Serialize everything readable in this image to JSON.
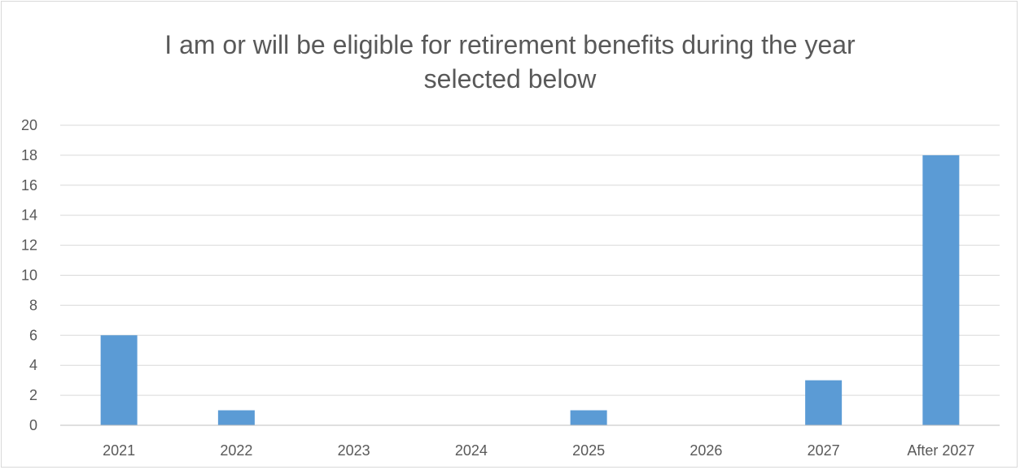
{
  "chart_data": {
    "type": "bar",
    "title_lines": [
      "I am or will be eligible for retirement benefits during the year",
      "selected below"
    ],
    "categories": [
      "2021",
      "2022",
      "2023",
      "2024",
      "2025",
      "2026",
      "2027",
      "After 2027"
    ],
    "values": [
      6,
      1,
      0,
      0,
      1,
      0,
      3,
      18
    ],
    "ylim": [
      0,
      20
    ],
    "yticks": [
      0,
      2,
      4,
      6,
      8,
      10,
      12,
      14,
      16,
      18,
      20
    ],
    "xlabel": "",
    "ylabel": "",
    "grid": true,
    "legend": "none",
    "bar_color": "#5b9bd5",
    "gridline_color": "#d9d9d9",
    "axis_color": "#bfbfbf",
    "text_color": "#595959"
  }
}
